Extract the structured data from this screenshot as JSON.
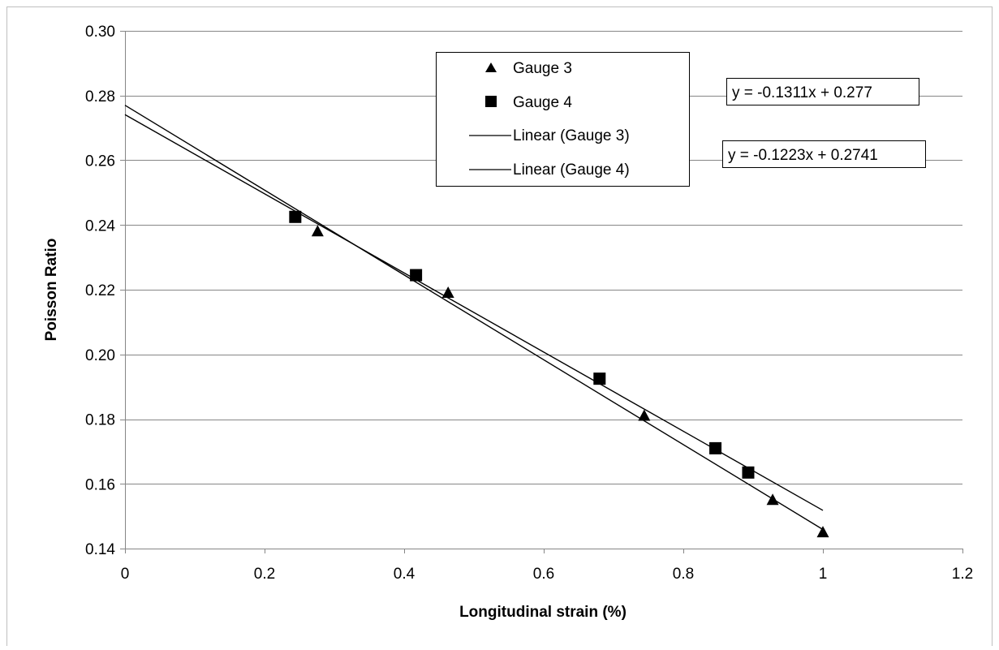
{
  "chart_data": {
    "type": "scatter",
    "title": "",
    "xlabel": "Longitudinal strain (%)",
    "ylabel": "Poisson Ratio",
    "xlim": [
      0,
      1.2
    ],
    "ylim": [
      0.14,
      0.3
    ],
    "x_ticks": [
      0,
      0.2,
      0.4,
      0.6,
      0.8,
      1,
      1.2
    ],
    "x_tick_labels": [
      "0",
      "0.2",
      "0.4",
      "0.6",
      "0.8",
      "1",
      "1.2"
    ],
    "y_ticks": [
      0.14,
      0.16,
      0.18,
      0.2,
      0.22,
      0.24,
      0.26,
      0.28,
      0.3
    ],
    "y_tick_labels": [
      "0.14",
      "0.16",
      "0.18",
      "0.20",
      "0.22",
      "0.24",
      "0.26",
      "0.28",
      "0.30"
    ],
    "grid": "horizontal",
    "legend_position": "top-center",
    "series": [
      {
        "name": "Gauge 3",
        "marker": "triangle",
        "color": "#000000",
        "x": [
          0.276,
          0.463,
          0.744,
          0.928,
          1.0
        ],
        "y": [
          0.238,
          0.219,
          0.181,
          0.155,
          0.145
        ]
      },
      {
        "name": "Gauge 4",
        "marker": "square",
        "color": "#000000",
        "x": [
          0.244,
          0.417,
          0.68,
          0.846,
          0.893
        ],
        "y": [
          0.2425,
          0.2245,
          0.1925,
          0.171,
          0.1635
        ]
      }
    ],
    "trendlines": [
      {
        "name": "Linear (Gauge 3)",
        "slope": -0.1311,
        "intercept": 0.277,
        "x_range": [
          0,
          1.0
        ],
        "equation": "y = -0.1311x + 0.277"
      },
      {
        "name": "Linear (Gauge 4)",
        "slope": -0.1223,
        "intercept": 0.2741,
        "x_range": [
          0,
          1.0
        ],
        "equation": "y = -0.1223x + 0.2741"
      }
    ],
    "legend": [
      {
        "label": "Gauge 3",
        "symbol": "triangle"
      },
      {
        "label": "Gauge 4",
        "symbol": "square"
      },
      {
        "label": "Linear (Gauge 3)",
        "symbol": "line"
      },
      {
        "label": "Linear (Gauge 4)",
        "symbol": "line"
      }
    ]
  }
}
